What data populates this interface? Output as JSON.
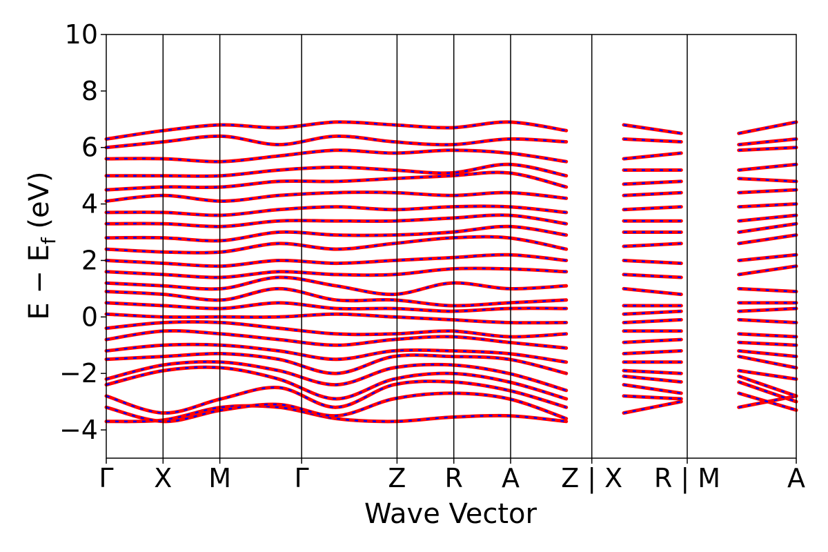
{
  "chart_data": {
    "type": "line",
    "xlabel": "Wave Vector",
    "ylabel": "E − E",
    "ylabel_subscript": "f",
    "ylabel_unit": " (eV)",
    "ylim": [
      -5,
      10
    ],
    "yticks": [
      {
        "value": -4,
        "label": "−4"
      },
      {
        "value": -2,
        "label": "−2"
      },
      {
        "value": 0,
        "label": "0"
      },
      {
        "value": 2,
        "label": "2"
      },
      {
        "value": 4,
        "label": "4"
      },
      {
        "value": 6,
        "label": "6"
      },
      {
        "value": 8,
        "label": "8"
      },
      {
        "value": 10,
        "label": "10"
      }
    ],
    "kpath_positions": [
      0,
      1,
      2,
      3.44,
      5.12,
      6.12,
      7.12,
      8.55,
      10.23,
      12.15
    ],
    "kpath_labels": [
      "Γ",
      "X",
      "M",
      "Γ",
      "Z",
      "R",
      "A",
      "Z | X",
      "R | M",
      "A"
    ],
    "xlim": [
      0,
      12.15
    ],
    "grid": false,
    "legend": "none",
    "segments": [
      {
        "start": 0,
        "end": 8.55,
        "path": "Γ-X-M-Γ-Z-R-A-Z"
      },
      {
        "start": 8.55,
        "end": 10.23,
        "path": "X-R"
      },
      {
        "start": 10.23,
        "end": 12.15,
        "path": "M-A"
      }
    ],
    "series": [
      {
        "color": "#ff0000",
        "style": "solid"
      },
      {
        "color": "#0000ff",
        "style": "dashed"
      }
    ],
    "bands": [
      {
        "y": [
          -3.7,
          -3.65,
          -3.2,
          -3.2,
          -3.6,
          -3.7,
          -3.55,
          -3.5,
          -3.7,
          -3.4,
          -3.0,
          -3.2,
          -2.8
        ]
      },
      {
        "y": [
          -3.2,
          -3.7,
          -3.3,
          -3.1,
          -3.5,
          -2.9,
          -2.7,
          -2.9,
          -3.6,
          -2.8,
          -2.9,
          -2.7,
          -3.3
        ]
      },
      {
        "y": [
          -2.8,
          -3.4,
          -2.9,
          -2.5,
          -3.2,
          -2.4,
          -2.3,
          -2.6,
          -3.2,
          -2.4,
          -2.7,
          -2.3,
          -3.0
        ]
      },
      {
        "y": [
          -2.4,
          -1.9,
          -1.8,
          -2.2,
          -2.9,
          -2.2,
          -2.0,
          -2.3,
          -2.9,
          -2.1,
          -2.3,
          -2.1,
          -2.8
        ]
      },
      {
        "y": [
          -2.2,
          -1.7,
          -1.6,
          -1.9,
          -2.4,
          -1.8,
          -1.7,
          -2.0,
          -2.6,
          -1.9,
          -2.0,
          -1.9,
          -2.2
        ]
      },
      {
        "y": [
          -1.5,
          -1.4,
          -1.3,
          -1.5,
          -2.0,
          -1.4,
          -1.4,
          -1.5,
          -2.0,
          -1.6,
          -1.6,
          -1.4,
          -1.8
        ]
      },
      {
        "y": [
          -1.2,
          -1.0,
          -1.0,
          -1.2,
          -1.5,
          -1.2,
          -1.2,
          -1.3,
          -1.6,
          -1.3,
          -1.2,
          -1.2,
          -1.4
        ]
      },
      {
        "y": [
          -0.8,
          -0.5,
          -0.6,
          -0.8,
          -1.0,
          -0.8,
          -0.7,
          -0.9,
          -1.1,
          -0.9,
          -0.8,
          -0.9,
          -1.0
        ]
      },
      {
        "y": [
          -0.4,
          -0.2,
          -0.2,
          -0.4,
          -0.6,
          -0.6,
          -0.5,
          -0.7,
          -0.6,
          -0.5,
          -0.5,
          -0.6,
          -0.7
        ]
      },
      {
        "y": [
          0.1,
          0.0,
          0.0,
          0.0,
          0.1,
          0.0,
          -0.1,
          -0.2,
          -0.2,
          -0.2,
          -0.1,
          -0.1,
          -0.2
        ]
      },
      {
        "y": [
          0.5,
          0.4,
          0.3,
          0.5,
          0.3,
          0.3,
          0.2,
          0.3,
          0.3,
          0.1,
          0.2,
          0.2,
          0.3
        ]
      },
      {
        "y": [
          0.9,
          0.8,
          0.6,
          1.0,
          0.6,
          0.6,
          0.4,
          0.5,
          0.6,
          0.4,
          0.4,
          0.5,
          0.5
        ]
      },
      {
        "y": [
          1.2,
          1.1,
          1.0,
          1.4,
          1.1,
          0.8,
          1.2,
          1.0,
          1.1,
          1.0,
          0.8,
          1.0,
          0.9
        ]
      },
      {
        "y": [
          1.6,
          1.5,
          1.4,
          1.6,
          1.5,
          1.5,
          1.7,
          1.7,
          1.6,
          1.5,
          1.4,
          1.5,
          1.8
        ]
      },
      {
        "y": [
          2.0,
          1.9,
          1.8,
          2.0,
          1.9,
          2.0,
          2.1,
          2.2,
          2.0,
          2.0,
          1.9,
          2.0,
          2.2
        ]
      },
      {
        "y": [
          2.4,
          2.3,
          2.3,
          2.6,
          2.4,
          2.6,
          2.8,
          2.8,
          2.4,
          2.5,
          2.6,
          2.6,
          2.9
        ]
      },
      {
        "y": [
          2.8,
          2.8,
          2.7,
          3.0,
          2.9,
          2.9,
          3.0,
          3.2,
          2.9,
          3.0,
          3.0,
          3.0,
          3.3
        ]
      },
      {
        "y": [
          3.3,
          3.3,
          3.2,
          3.4,
          3.4,
          3.4,
          3.5,
          3.6,
          3.3,
          3.4,
          3.4,
          3.4,
          3.6
        ]
      },
      {
        "y": [
          3.7,
          3.7,
          3.6,
          3.8,
          3.9,
          3.8,
          3.9,
          3.9,
          3.7,
          3.8,
          3.9,
          3.9,
          4.0
        ]
      },
      {
        "y": [
          4.1,
          4.3,
          4.1,
          4.3,
          4.4,
          4.4,
          4.3,
          4.4,
          4.2,
          4.3,
          4.4,
          4.4,
          4.5
        ]
      },
      {
        "y": [
          4.5,
          4.6,
          4.6,
          4.8,
          4.8,
          4.9,
          5.0,
          5.1,
          4.6,
          4.7,
          4.8,
          4.9,
          4.8
        ]
      },
      {
        "y": [
          5.0,
          5.0,
          5.0,
          5.2,
          5.3,
          5.2,
          5.1,
          5.4,
          5.0,
          5.2,
          5.2,
          5.2,
          5.4
        ]
      },
      {
        "y": [
          5.6,
          5.6,
          5.5,
          5.7,
          5.9,
          5.8,
          5.9,
          5.8,
          5.5,
          5.6,
          5.8,
          5.9,
          6.0
        ]
      },
      {
        "y": [
          6.0,
          6.2,
          6.4,
          6.1,
          6.4,
          6.2,
          6.1,
          6.3,
          6.2,
          6.3,
          6.2,
          6.1,
          6.3
        ]
      },
      {
        "y": [
          6.3,
          6.6,
          6.8,
          6.7,
          6.9,
          6.8,
          6.7,
          6.9,
          6.6,
          6.8,
          6.5,
          6.5,
          6.9
        ]
      }
    ]
  }
}
